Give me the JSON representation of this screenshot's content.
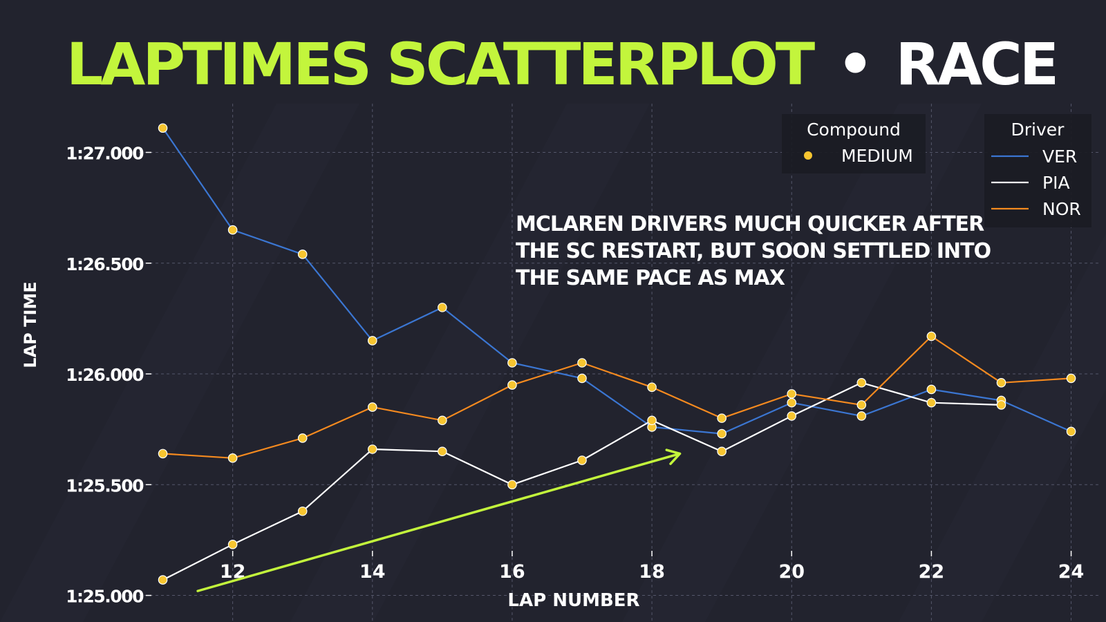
{
  "chart_data": {
    "type": "line",
    "title": {
      "part1": "LAPTIMES SCATTERPLOT",
      "separator": "•",
      "part2": "RACE"
    },
    "xlabel": "LAP NUMBER",
    "ylabel": "LAP TIME",
    "xlim": [
      10.5,
      24.4
    ],
    "ylim": [
      84.88,
      87.22
    ],
    "x_ticks": [
      12,
      14,
      16,
      18,
      20,
      22,
      24
    ],
    "y_ticks": [
      {
        "value": 85.0,
        "label": "1:25.000"
      },
      {
        "value": 85.5,
        "label": "1:25.500"
      },
      {
        "value": 86.0,
        "label": "1:26.000"
      },
      {
        "value": 86.5,
        "label": "1:26.500"
      },
      {
        "value": 87.0,
        "label": "1:27.000"
      }
    ],
    "grid": true,
    "series": [
      {
        "name": "VER",
        "color": "#3b76d2",
        "x": [
          11,
          12,
          13,
          14,
          15,
          16,
          17,
          18,
          19,
          20,
          21,
          22,
          23,
          24
        ],
        "y": [
          87.11,
          86.65,
          86.54,
          86.15,
          86.3,
          86.05,
          85.98,
          85.76,
          85.73,
          85.87,
          85.81,
          85.93,
          85.88,
          85.74
        ]
      },
      {
        "name": "PIA",
        "color": "#ffffff",
        "x": [
          11,
          12,
          13,
          14,
          15,
          16,
          17,
          18,
          19,
          20,
          21,
          22,
          23
        ],
        "y": [
          85.07,
          85.23,
          85.38,
          85.66,
          85.65,
          85.5,
          85.61,
          85.79,
          85.65,
          85.81,
          85.96,
          85.87,
          85.86
        ]
      },
      {
        "name": "NOR",
        "color": "#f58a1f",
        "x": [
          11,
          12,
          13,
          14,
          15,
          16,
          17,
          18,
          19,
          20,
          21,
          22,
          23,
          24
        ],
        "y": [
          85.64,
          85.62,
          85.71,
          85.85,
          85.79,
          85.95,
          86.05,
          85.94,
          85.8,
          85.91,
          85.86,
          86.17,
          85.96,
          85.98
        ]
      }
    ],
    "marker_color": "#f7c530",
    "legend_compound": {
      "title": "Compound",
      "entries": [
        {
          "label": "MEDIUM",
          "color": "#f7c530"
        }
      ],
      "placement": "top-right"
    },
    "legend_driver": {
      "title": "Driver",
      "placement": "top-right"
    },
    "annotation": {
      "lines": [
        "MCLAREN DRIVERS MUCH QUICKER AFTER",
        "THE SC RESTART, BUT SOON SETTLED INTO",
        "THE SAME PACE AS MAX"
      ]
    },
    "arrow": {
      "from": [
        11.5,
        85.02
      ],
      "to": [
        18.4,
        85.64
      ],
      "color": "#c3f53c"
    },
    "colors": {
      "background": "#22232e",
      "accent": "#c3f53c",
      "grid": "#55576a",
      "text": "#ffffff",
      "legend_bg": "#1b1c24"
    }
  }
}
